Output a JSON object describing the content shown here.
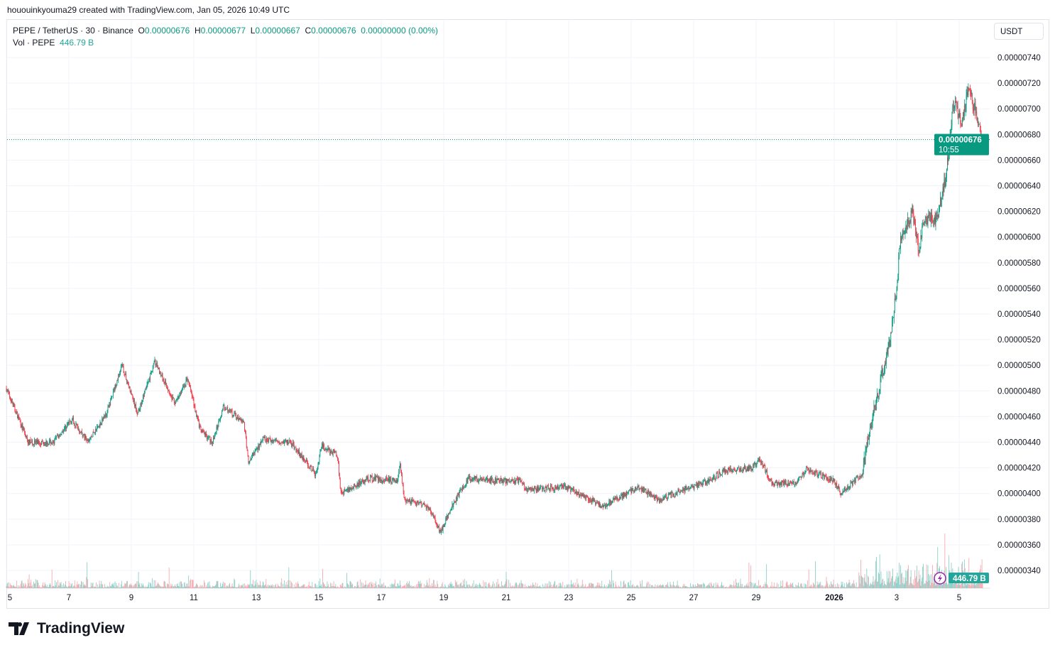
{
  "credit": "hououinkyouma29 created with TradingView.com, Jan 05, 2026 10:49 UTC",
  "legend": {
    "symbol": "PEPE / TetherUS · 30 · Binance",
    "o_label": "O",
    "o": "0.00000676",
    "h_label": "H",
    "h": "0.00000677",
    "l_label": "L",
    "l": "0.00000667",
    "c_label": "C",
    "c": "0.00000676",
    "change": "0.00000000 (0.00%)",
    "vol_label": "Vol · PEPE",
    "vol": "446.79 B"
  },
  "currency": "USDT",
  "last_price_label": {
    "price": "0.00000676",
    "countdown": "10:55"
  },
  "volume_label": "446.79 B",
  "logo": "TradingView",
  "colors": {
    "up": "#089981",
    "down": "#f23645",
    "up_vol": "#7fcdc4",
    "down_vol": "#f7a1a8"
  },
  "chart_data": {
    "type": "candlestick",
    "title": "PEPE / TetherUS · 30 · Binance",
    "y_ticks": [
      "0.00000740",
      "0.00000720",
      "0.00000700",
      "0.00000680",
      "0.00000660",
      "0.00000640",
      "0.00000620",
      "0.00000600",
      "0.00000580",
      "0.00000560",
      "0.00000540",
      "0.00000520",
      "0.00000500",
      "0.00000480",
      "0.00000460",
      "0.00000440",
      "0.00000420",
      "0.00000400",
      "0.00000380",
      "0.00000360",
      "0.00000340"
    ],
    "ylim_e8": [
      330,
      750
    ],
    "x_ticks": [
      {
        "day": 0,
        "label": "5"
      },
      {
        "day": 2,
        "label": "7"
      },
      {
        "day": 4,
        "label": "9"
      },
      {
        "day": 6,
        "label": "11"
      },
      {
        "day": 8,
        "label": "13"
      },
      {
        "day": 10,
        "label": "15"
      },
      {
        "day": 12,
        "label": "17"
      },
      {
        "day": 14,
        "label": "19"
      },
      {
        "day": 16,
        "label": "21"
      },
      {
        "day": 18,
        "label": "23"
      },
      {
        "day": 20,
        "label": "25"
      },
      {
        "day": 22,
        "label": "27"
      },
      {
        "day": 24,
        "label": "29"
      },
      {
        "day": 26.5,
        "label": "2026"
      },
      {
        "day": 28.5,
        "label": "3"
      },
      {
        "day": 30.5,
        "label": "5"
      }
    ],
    "xlim_days": [
      -0.2,
      31.3
    ],
    "price_path_e8": [
      [
        0,
        482
      ],
      [
        0.7,
        440
      ],
      [
        1.5,
        440
      ],
      [
        2.1,
        458
      ],
      [
        2.6,
        440
      ],
      [
        3.2,
        462
      ],
      [
        3.7,
        500
      ],
      [
        4.2,
        462
      ],
      [
        4.75,
        503
      ],
      [
        5.4,
        470
      ],
      [
        5.8,
        490
      ],
      [
        6.2,
        450
      ],
      [
        6.6,
        440
      ],
      [
        6.95,
        468
      ],
      [
        7.6,
        455
      ],
      [
        7.75,
        425
      ],
      [
        8.2,
        442
      ],
      [
        9.1,
        440
      ],
      [
        9.9,
        415
      ],
      [
        10.1,
        437
      ],
      [
        10.6,
        430
      ],
      [
        10.7,
        400
      ],
      [
        11.6,
        412
      ],
      [
        12.5,
        410
      ],
      [
        12.6,
        422
      ],
      [
        12.75,
        395
      ],
      [
        13.5,
        390
      ],
      [
        13.9,
        370
      ],
      [
        14.3,
        392
      ],
      [
        14.8,
        412
      ],
      [
        15.7,
        410
      ],
      [
        16.5,
        410
      ],
      [
        16.6,
        403
      ],
      [
        17.9,
        405
      ],
      [
        19.1,
        390
      ],
      [
        20.2,
        405
      ],
      [
        20.9,
        395
      ],
      [
        21.6,
        402
      ],
      [
        22.5,
        410
      ],
      [
        23,
        418
      ],
      [
        23.9,
        420
      ],
      [
        24.1,
        428
      ],
      [
        24.5,
        408
      ],
      [
        25.3,
        408
      ],
      [
        25.6,
        418
      ],
      [
        26.5,
        410
      ],
      [
        26.7,
        400
      ],
      [
        27.4,
        415
      ],
      [
        27.6,
        445
      ],
      [
        28,
        490
      ],
      [
        28.3,
        520
      ],
      [
        28.5,
        560
      ],
      [
        28.6,
        595
      ],
      [
        29,
        620
      ],
      [
        29.2,
        590
      ],
      [
        29.4,
        615
      ],
      [
        29.8,
        615
      ],
      [
        30.1,
        650
      ],
      [
        30.3,
        705
      ],
      [
        30.6,
        690
      ],
      [
        30.8,
        715
      ],
      [
        31,
        700
      ],
      [
        31.25,
        676
      ]
    ],
    "last_price_e8": 676
  }
}
